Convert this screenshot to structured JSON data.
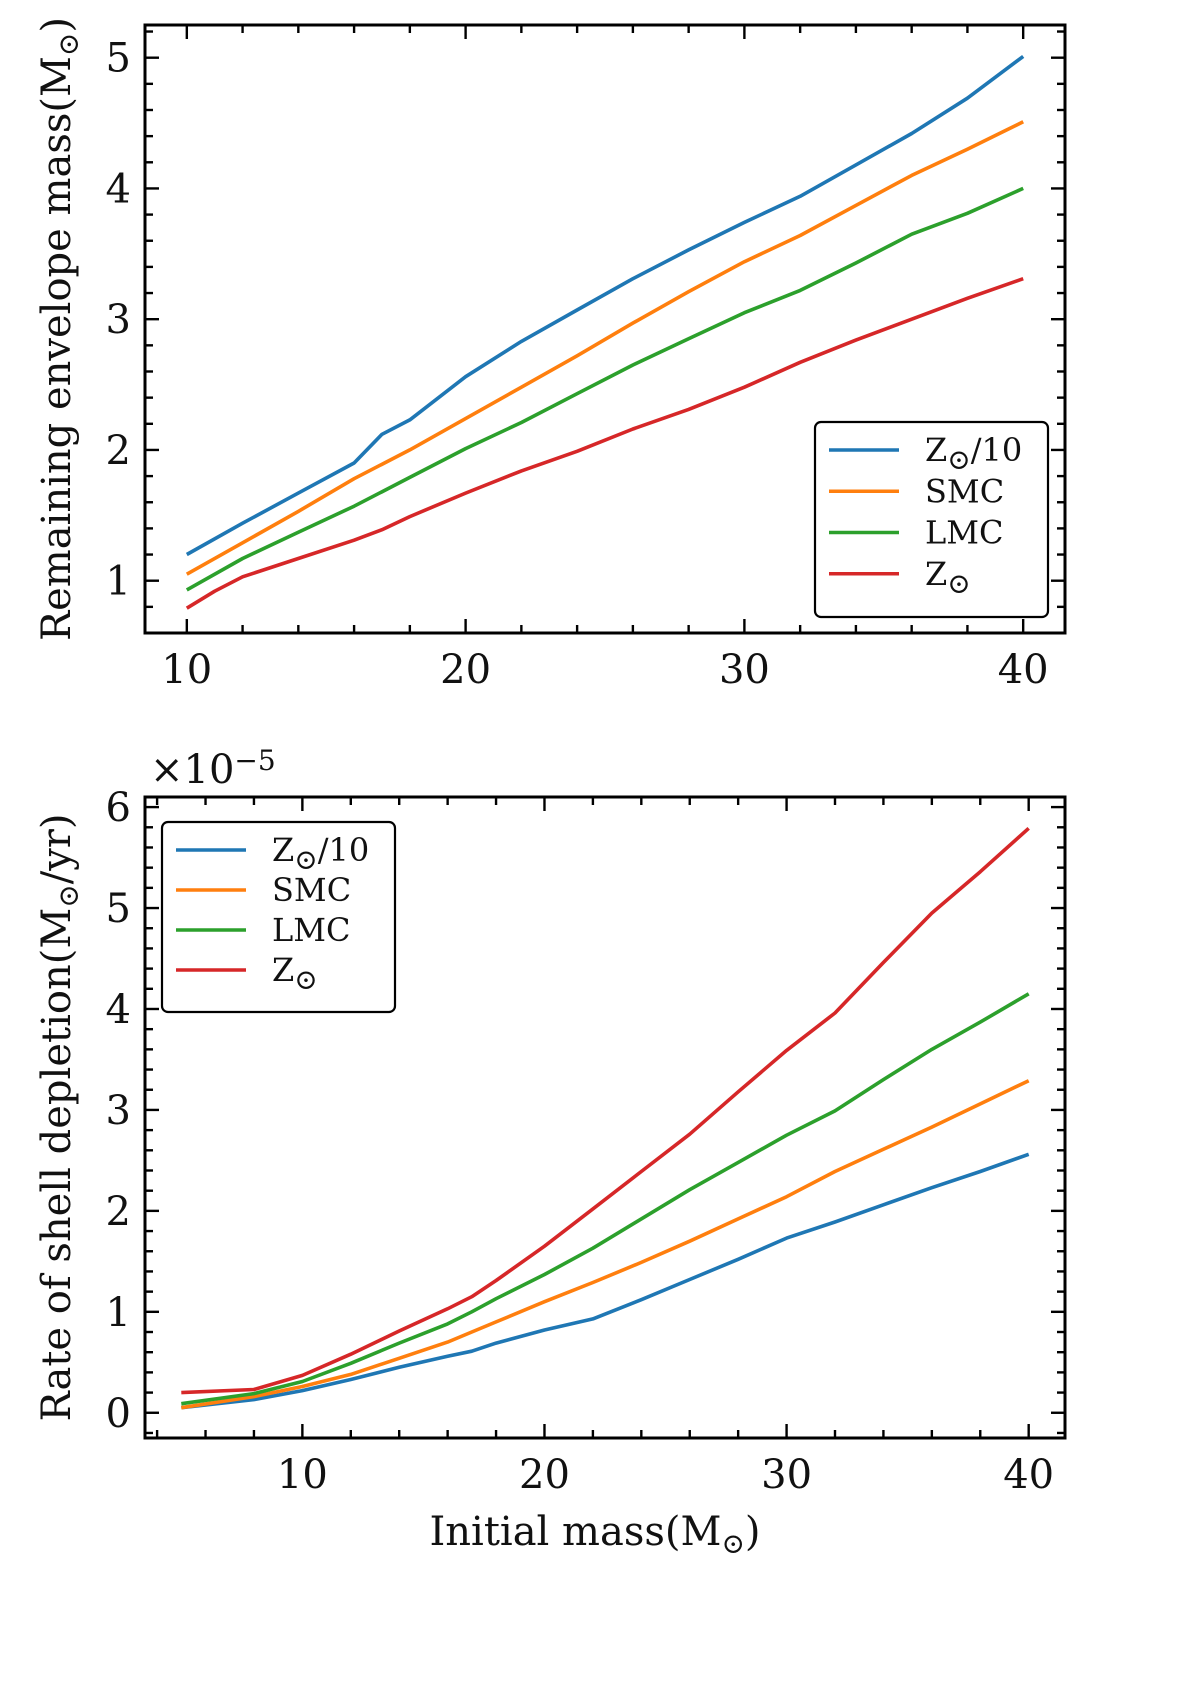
{
  "chart_data": [
    {
      "type": "line",
      "ylabel": "Remaining envelope mass(M☉)",
      "xlabel": "",
      "xlim": [
        8.5,
        41.5
      ],
      "ylim": [
        0.6,
        5.25
      ],
      "xticks": [
        10,
        20,
        30,
        40
      ],
      "yticks": [
        1,
        2,
        3,
        4,
        5
      ],
      "legend_position": "lower-right",
      "series": [
        {
          "name": "Z☉/10",
          "color": "#1f77b4",
          "x": [
            10,
            12,
            14,
            16,
            17,
            18,
            20,
            22,
            24,
            26,
            28,
            30,
            32,
            34,
            36,
            38,
            40
          ],
          "y": [
            1.2,
            1.44,
            1.67,
            1.9,
            2.12,
            2.23,
            2.56,
            2.83,
            3.07,
            3.31,
            3.53,
            3.74,
            3.94,
            4.18,
            4.42,
            4.69,
            5.01
          ]
        },
        {
          "name": "SMC",
          "color": "#ff7f0e",
          "x": [
            10,
            12,
            14,
            16,
            18,
            20,
            22,
            24,
            26,
            28,
            30,
            32,
            34,
            36,
            38,
            40
          ],
          "y": [
            1.05,
            1.29,
            1.53,
            1.78,
            2.0,
            2.24,
            2.48,
            2.72,
            2.97,
            3.21,
            3.44,
            3.64,
            3.87,
            4.1,
            4.3,
            4.51
          ]
        },
        {
          "name": "LMC",
          "color": "#2ca02c",
          "x": [
            10,
            12,
            14,
            16,
            18,
            20,
            22,
            24,
            26,
            28,
            30,
            32,
            34,
            36,
            38,
            40
          ],
          "y": [
            0.93,
            1.17,
            1.37,
            1.57,
            1.79,
            2.01,
            2.21,
            2.43,
            2.65,
            2.85,
            3.05,
            3.22,
            3.43,
            3.65,
            3.81,
            4.0
          ]
        },
        {
          "name": "Z☉",
          "color": "#d62728",
          "x": [
            10,
            11,
            12,
            14,
            16,
            17,
            18,
            20,
            22,
            24,
            26,
            28,
            30,
            32,
            34,
            36,
            38,
            40
          ],
          "y": [
            0.79,
            0.92,
            1.03,
            1.17,
            1.31,
            1.39,
            1.49,
            1.67,
            1.84,
            1.99,
            2.16,
            2.31,
            2.48,
            2.67,
            2.84,
            3.0,
            3.16,
            3.31
          ]
        }
      ]
    },
    {
      "type": "line",
      "ylabel": "Rate of shell depletion(M☉/yr)",
      "xlabel": "Initial mass(M☉)",
      "xlim": [
        3.5,
        41.5
      ],
      "ylim": [
        -0.25,
        6.1
      ],
      "xticks": [
        10,
        20,
        30,
        40
      ],
      "yticks": [
        0,
        1,
        2,
        3,
        4,
        5,
        6
      ],
      "y_offset_text": "×10⁻⁵",
      "legend_position": "upper-left",
      "series": [
        {
          "name": "Z☉/10",
          "color": "#1f77b4",
          "x": [
            5,
            8,
            10,
            12,
            14,
            16,
            17,
            18,
            20,
            22,
            24,
            26,
            28,
            30,
            32,
            34,
            36,
            38,
            40
          ],
          "y": [
            0.05,
            0.13,
            0.22,
            0.33,
            0.45,
            0.56,
            0.61,
            0.69,
            0.82,
            0.93,
            1.12,
            1.32,
            1.52,
            1.73,
            1.89,
            2.06,
            2.23,
            2.39,
            2.56
          ]
        },
        {
          "name": "SMC",
          "color": "#ff7f0e",
          "x": [
            5,
            8,
            10,
            12,
            14,
            16,
            17,
            18,
            20,
            22,
            24,
            26,
            28,
            30,
            32,
            34,
            36,
            38,
            40
          ],
          "y": [
            0.05,
            0.16,
            0.26,
            0.38,
            0.54,
            0.7,
            0.8,
            0.9,
            1.1,
            1.29,
            1.49,
            1.7,
            1.92,
            2.14,
            2.39,
            2.61,
            2.83,
            3.06,
            3.29
          ]
        },
        {
          "name": "LMC",
          "color": "#2ca02c",
          "x": [
            5,
            8,
            10,
            12,
            14,
            16,
            17,
            18,
            20,
            22,
            24,
            26,
            28,
            30,
            32,
            34,
            36,
            38,
            40
          ],
          "y": [
            0.09,
            0.19,
            0.31,
            0.49,
            0.69,
            0.88,
            1.0,
            1.13,
            1.37,
            1.63,
            1.92,
            2.21,
            2.48,
            2.75,
            2.99,
            3.3,
            3.6,
            3.87,
            4.15
          ]
        },
        {
          "name": "Z☉",
          "color": "#d62728",
          "x": [
            5,
            8,
            10,
            12,
            14,
            16,
            17,
            18,
            20,
            22,
            24,
            26,
            28,
            30,
            32,
            34,
            36,
            38,
            40
          ],
          "y": [
            0.2,
            0.23,
            0.37,
            0.58,
            0.81,
            1.03,
            1.15,
            1.31,
            1.65,
            2.02,
            2.39,
            2.76,
            3.18,
            3.59,
            3.96,
            4.46,
            4.95,
            5.36,
            5.79
          ]
        }
      ]
    }
  ]
}
